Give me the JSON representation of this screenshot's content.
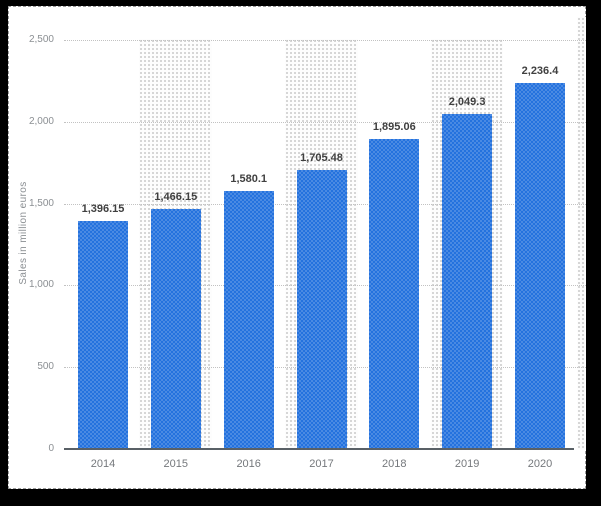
{
  "colors": {
    "frame_background": "#000000",
    "card_background": "#ffffff",
    "card_border": "#9b9b9b",
    "bar_light": "#4a8ae3",
    "bar_dark": "#2472de",
    "band_dot": "#c9c9c9",
    "grid": "#c2c2c2",
    "axis": "#596066",
    "ytick_text": "#8b8f93",
    "xtick_text": "#75787c",
    "value_text": "#404040"
  },
  "chart_data": {
    "type": "bar",
    "title": "",
    "categories": [
      "2014",
      "2015",
      "2016",
      "2017",
      "2018",
      "2019",
      "2020"
    ],
    "values": [
      1396.15,
      1466.15,
      1580.1,
      1705.48,
      1895.06,
      2049.3,
      2236.4
    ],
    "value_labels": [
      "1,396.15",
      "1,466.15",
      "1,580.1",
      "1,705.48",
      "1,895.06",
      "2,049.3",
      "2,236.4"
    ],
    "xlabel": "",
    "ylabel": "Sales in million euros",
    "ylim": [
      0,
      2500
    ],
    "ytick_values": [
      0,
      500,
      1000,
      1500,
      2000,
      2500
    ],
    "ytick_labels": [
      "0",
      "500",
      "1,000",
      "1,500",
      "2,000",
      "2,500"
    ],
    "grid": "horizontal-dotted",
    "legend": null,
    "banded_categories": [
      "2015",
      "2017",
      "2019"
    ],
    "right_edge_band": true
  }
}
